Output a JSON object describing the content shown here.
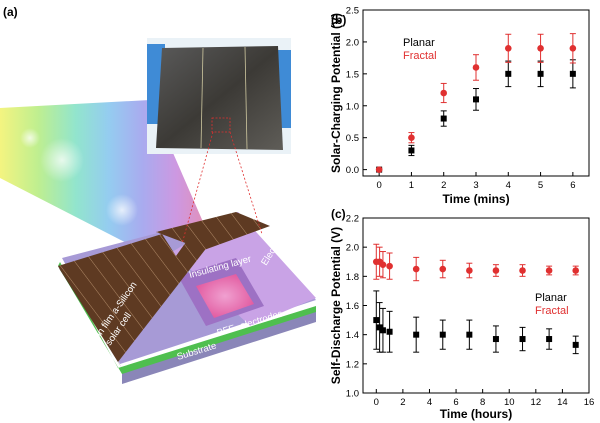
{
  "panels": {
    "a": {
      "label": "(a)"
    },
    "b": {
      "label": "(b)"
    },
    "c": {
      "label": "(c)"
    }
  },
  "schematic": {
    "labels": {
      "solar_cell": [
        "Thin film a-Silicon",
        "solar cell"
      ],
      "insulating_layer": "Insulating layer",
      "electrolyte": "Electrolyte",
      "electrodes": "BFE- electrodes",
      "substrate": "Substrate"
    }
  },
  "colors": {
    "planar": "#000000",
    "fractal": "#e03030",
    "cell_brown": "#5e3a22",
    "electrolyte": "#c9a3e6",
    "electrode": "#e0529a",
    "substrate_green": "#4fbf4f"
  },
  "chart_data": [
    {
      "type": "scatter",
      "panel": "b",
      "xlabel": "Time (mins)",
      "ylabel": "Solar-Charging Potential (V)",
      "xlim": [
        -0.5,
        6.5
      ],
      "ylim": [
        -0.1,
        2.5
      ],
      "xticks": [
        "0",
        "1",
        "2",
        "3",
        "4",
        "5",
        "6"
      ],
      "yticks": [
        "0.0",
        "0.5",
        "1.0",
        "1.5",
        "2.0",
        "2.5"
      ],
      "legend_position": "top-left",
      "series": [
        {
          "name": "Planar",
          "marker": "square",
          "color": "#000000",
          "x": [
            0,
            1,
            2,
            3,
            4,
            5,
            6
          ],
          "y": [
            0.0,
            0.3,
            0.8,
            1.1,
            1.5,
            1.5,
            1.5
          ],
          "err": [
            0.0,
            0.08,
            0.12,
            0.17,
            0.2,
            0.2,
            0.22
          ]
        },
        {
          "name": "Fractal",
          "marker": "circle",
          "color": "#e03030",
          "x": [
            0,
            1,
            2,
            3,
            4,
            5,
            6
          ],
          "y": [
            0.0,
            0.5,
            1.2,
            1.6,
            1.9,
            1.9,
            1.9
          ],
          "err": [
            0.0,
            0.08,
            0.15,
            0.2,
            0.22,
            0.22,
            0.23
          ]
        }
      ]
    },
    {
      "type": "scatter",
      "panel": "c",
      "xlabel": "Time (hours)",
      "ylabel": "Self-Discharge Potential (V)",
      "xlim": [
        -1,
        16
      ],
      "ylim": [
        1.0,
        2.2
      ],
      "xticks": [
        "0",
        "2",
        "4",
        "6",
        "8",
        "10",
        "12",
        "14",
        "16"
      ],
      "yticks": [
        "1.0",
        "1.2",
        "1.4",
        "1.6",
        "1.8",
        "2.0",
        "2.2"
      ],
      "legend_position": "center-right",
      "series": [
        {
          "name": "Planar",
          "marker": "square",
          "color": "#000000",
          "x": [
            0,
            0.25,
            0.5,
            1,
            3,
            5,
            7,
            9,
            11,
            13,
            15
          ],
          "y": [
            1.5,
            1.45,
            1.43,
            1.42,
            1.4,
            1.4,
            1.4,
            1.37,
            1.37,
            1.37,
            1.33
          ],
          "err": [
            0.2,
            0.17,
            0.15,
            0.14,
            0.12,
            0.1,
            0.1,
            0.09,
            0.08,
            0.07,
            0.06
          ]
        },
        {
          "name": "Fractal",
          "marker": "circle",
          "color": "#e03030",
          "x": [
            0,
            0.25,
            0.5,
            1,
            3,
            5,
            7,
            9,
            11,
            13,
            15
          ],
          "y": [
            1.9,
            1.9,
            1.88,
            1.87,
            1.85,
            1.85,
            1.84,
            1.84,
            1.84,
            1.84,
            1.84
          ],
          "err": [
            0.12,
            0.1,
            0.09,
            0.09,
            0.08,
            0.06,
            0.05,
            0.04,
            0.04,
            0.03,
            0.03
          ]
        }
      ]
    }
  ]
}
